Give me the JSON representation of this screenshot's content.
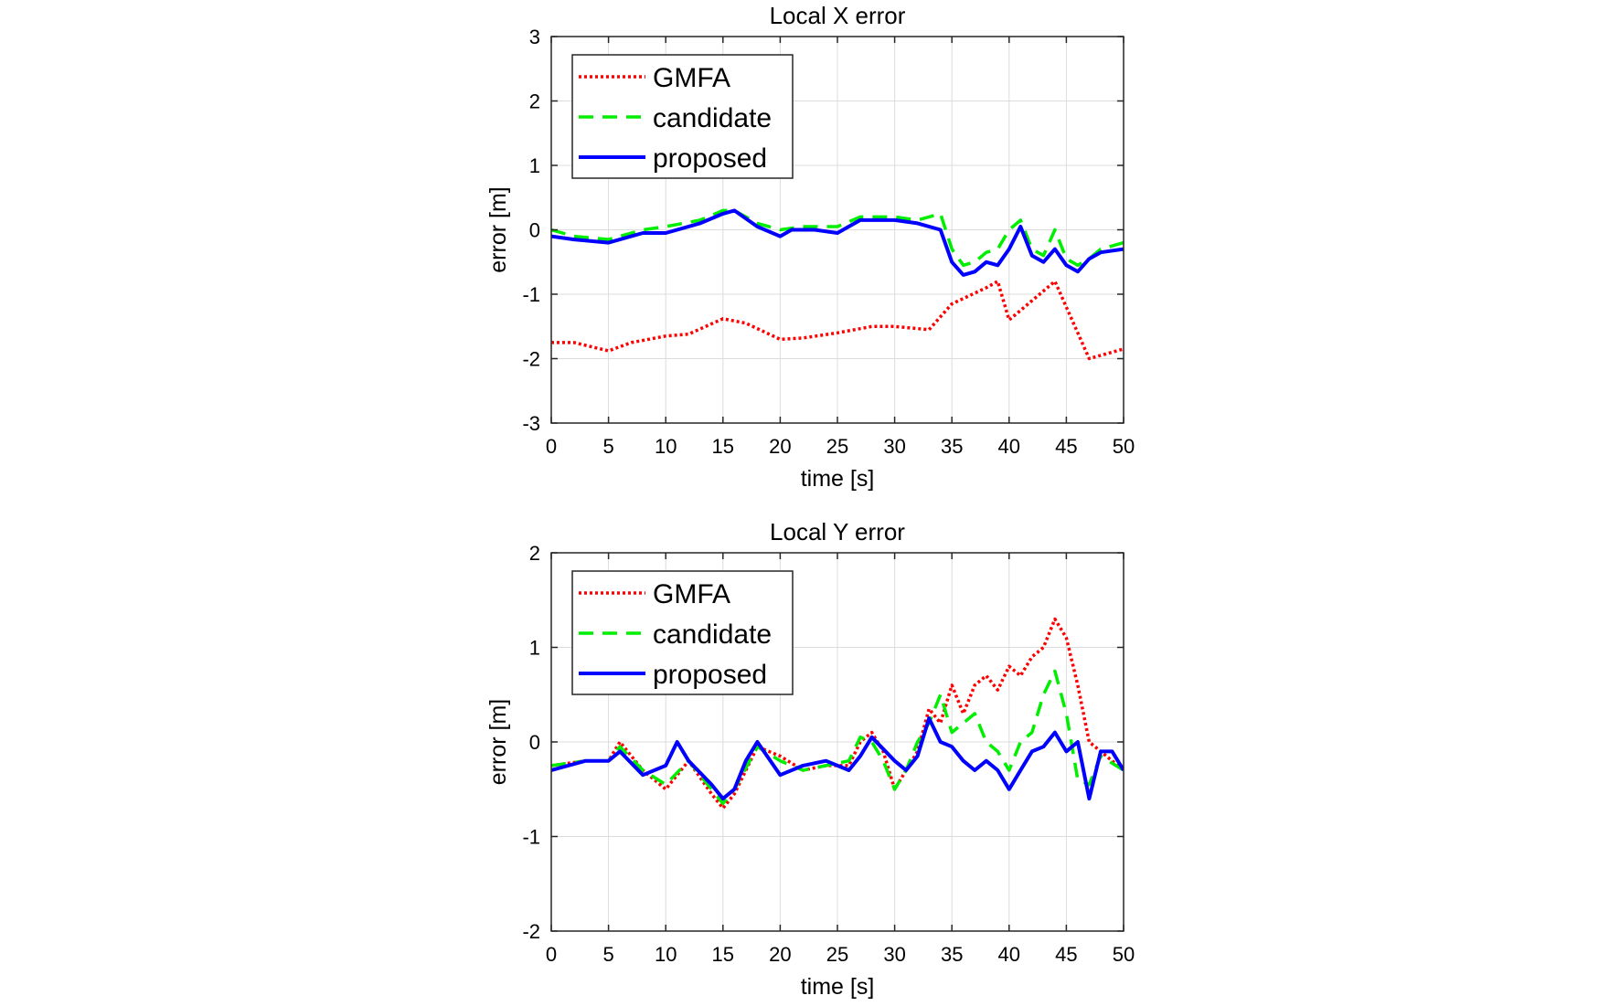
{
  "colors": {
    "GMFA": "#ff0000",
    "candidate": "#00ee00",
    "proposed": "#0000ff",
    "grid": "#dcdcdc",
    "axis": "#262626"
  },
  "chart_data": [
    {
      "type": "line",
      "title": "Local X error",
      "xlabel": "time [s]",
      "ylabel": "error [m]",
      "xlim": [
        0,
        50
      ],
      "ylim": [
        -3,
        3
      ],
      "xticks": [
        0,
        5,
        10,
        15,
        20,
        25,
        30,
        35,
        40,
        45,
        50
      ],
      "yticks": [
        -3,
        -2,
        -1,
        0,
        1,
        2,
        3
      ],
      "grid": true,
      "legend_position": "top-left",
      "series": [
        {
          "name": "GMFA",
          "style": "dotted",
          "x": [
            0,
            2,
            5,
            7,
            10,
            12,
            15,
            17,
            20,
            22,
            25,
            28,
            30,
            33,
            35,
            38,
            39,
            40,
            42,
            44,
            46,
            47,
            50
          ],
          "y": [
            -1.75,
            -1.75,
            -1.88,
            -1.75,
            -1.65,
            -1.62,
            -1.38,
            -1.45,
            -1.7,
            -1.68,
            -1.6,
            -1.5,
            -1.5,
            -1.55,
            -1.15,
            -0.9,
            -0.8,
            -1.4,
            -1.1,
            -0.8,
            -1.6,
            -2.0,
            -1.85
          ]
        },
        {
          "name": "candidate",
          "style": "dashed",
          "x": [
            0,
            2,
            5,
            8,
            10,
            13,
            15,
            16,
            18,
            20,
            22,
            25,
            27,
            30,
            32,
            34,
            35,
            36,
            37,
            38,
            39,
            40,
            41,
            42,
            43,
            44,
            45,
            46,
            47,
            48,
            50
          ],
          "y": [
            0.0,
            -0.1,
            -0.15,
            0.0,
            0.05,
            0.15,
            0.3,
            0.3,
            0.1,
            0.0,
            0.05,
            0.05,
            0.2,
            0.2,
            0.15,
            0.25,
            -0.3,
            -0.55,
            -0.5,
            -0.35,
            -0.3,
            0.0,
            0.15,
            -0.3,
            -0.4,
            0.0,
            -0.45,
            -0.55,
            -0.45,
            -0.3,
            -0.2
          ]
        },
        {
          "name": "proposed",
          "style": "solid",
          "x": [
            0,
            2,
            5,
            8,
            10,
            13,
            15,
            16,
            18,
            20,
            21,
            23,
            25,
            27,
            30,
            32,
            34,
            35,
            36,
            37,
            38,
            39,
            40,
            41,
            42,
            43,
            44,
            45,
            46,
            47,
            48,
            50
          ],
          "y": [
            -0.1,
            -0.15,
            -0.2,
            -0.05,
            -0.05,
            0.1,
            0.25,
            0.3,
            0.05,
            -0.1,
            0.0,
            0.0,
            -0.05,
            0.15,
            0.15,
            0.1,
            0.0,
            -0.5,
            -0.7,
            -0.65,
            -0.5,
            -0.55,
            -0.3,
            0.05,
            -0.4,
            -0.5,
            -0.3,
            -0.55,
            -0.65,
            -0.45,
            -0.35,
            -0.3
          ]
        }
      ]
    },
    {
      "type": "line",
      "title": "Local Y error",
      "xlabel": "time [s]",
      "ylabel": "error [m]",
      "xlim": [
        0,
        50
      ],
      "ylim": [
        -2,
        2
      ],
      "xticks": [
        0,
        5,
        10,
        15,
        20,
        25,
        30,
        35,
        40,
        45,
        50
      ],
      "yticks": [
        -2,
        -1,
        0,
        1,
        2
      ],
      "grid": true,
      "legend_position": "top-left",
      "series": [
        {
          "name": "GMFA",
          "style": "dotted",
          "x": [
            0,
            3,
            5,
            6,
            8,
            10,
            12,
            14,
            15,
            16,
            18,
            20,
            22,
            24,
            26,
            27,
            28,
            29,
            30,
            32,
            33,
            34,
            35,
            36,
            37,
            38,
            39,
            40,
            41,
            42,
            43,
            44,
            45,
            46,
            47,
            48,
            49,
            50
          ],
          "y": [
            -0.25,
            -0.2,
            -0.2,
            0.0,
            -0.3,
            -0.5,
            -0.2,
            -0.55,
            -0.7,
            -0.55,
            -0.05,
            -0.15,
            -0.3,
            -0.25,
            -0.25,
            0.0,
            0.1,
            -0.1,
            -0.5,
            -0.1,
            0.35,
            0.2,
            0.6,
            0.3,
            0.6,
            0.7,
            0.55,
            0.8,
            0.7,
            0.9,
            1.0,
            1.3,
            1.1,
            0.6,
            0.0,
            -0.1,
            -0.2,
            -0.3
          ]
        },
        {
          "name": "candidate",
          "style": "dashed",
          "x": [
            0,
            3,
            5,
            6,
            8,
            10,
            12,
            14,
            15,
            16,
            18,
            20,
            22,
            24,
            26,
            27,
            28,
            29,
            30,
            31,
            32,
            33,
            34,
            35,
            36,
            37,
            38,
            39,
            40,
            41,
            42,
            43,
            44,
            45,
            46,
            47,
            48,
            50
          ],
          "y": [
            -0.25,
            -0.2,
            -0.2,
            -0.05,
            -0.3,
            -0.45,
            -0.2,
            -0.5,
            -0.65,
            -0.5,
            -0.05,
            -0.2,
            -0.3,
            -0.25,
            -0.2,
            0.05,
            0.0,
            -0.2,
            -0.5,
            -0.3,
            0.0,
            0.2,
            0.5,
            0.1,
            0.2,
            0.3,
            0.0,
            -0.1,
            -0.3,
            0.0,
            0.1,
            0.5,
            0.75,
            0.3,
            -0.4,
            -0.45,
            -0.15,
            -0.3
          ]
        },
        {
          "name": "proposed",
          "style": "solid",
          "x": [
            0,
            3,
            5,
            6,
            8,
            10,
            11,
            12,
            14,
            15,
            16,
            17,
            18,
            20,
            22,
            24,
            26,
            27,
            28,
            30,
            31,
            32,
            33,
            34,
            35,
            36,
            37,
            38,
            39,
            40,
            41,
            42,
            43,
            44,
            45,
            46,
            47,
            48,
            49,
            50
          ],
          "y": [
            -0.3,
            -0.2,
            -0.2,
            -0.1,
            -0.35,
            -0.25,
            0.0,
            -0.2,
            -0.45,
            -0.6,
            -0.5,
            -0.2,
            0.0,
            -0.35,
            -0.25,
            -0.2,
            -0.3,
            -0.15,
            0.05,
            -0.2,
            -0.3,
            -0.15,
            0.25,
            0.0,
            -0.05,
            -0.2,
            -0.3,
            -0.2,
            -0.3,
            -0.5,
            -0.3,
            -0.1,
            -0.05,
            0.1,
            -0.1,
            0.0,
            -0.6,
            -0.1,
            -0.1,
            -0.3
          ]
        }
      ]
    }
  ]
}
